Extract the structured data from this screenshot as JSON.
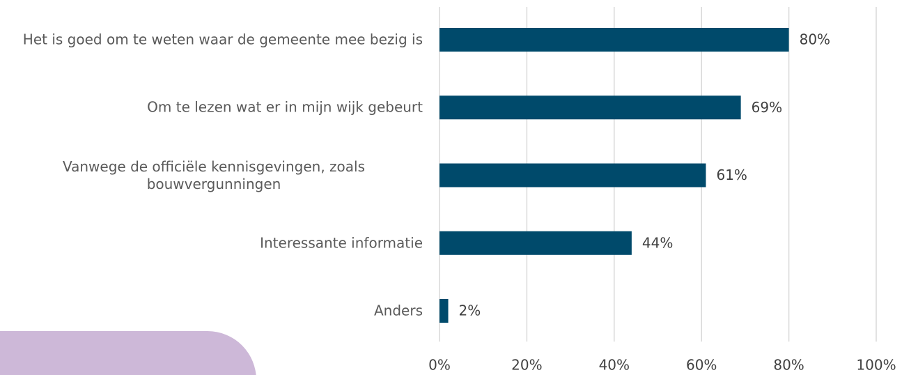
{
  "chart_data": {
    "type": "bar",
    "orientation": "horizontal",
    "categories": [
      "Het is goed om te weten waar de gemeente mee bezig is",
      "Om te lezen wat er in mijn wijk gebeurt",
      "Vanwege de officiële kennisgevingen, zoals bouwvergunningen",
      "Interessante informatie",
      "Anders"
    ],
    "values": [
      80,
      69,
      61,
      44,
      2
    ],
    "value_labels": [
      "80%",
      "69%",
      "61%",
      "44%",
      "2%"
    ],
    "color": "#004a6b",
    "xlim": [
      0,
      100
    ],
    "xticks": [
      {
        "value": 0,
        "label": "0%"
      },
      {
        "value": 20,
        "label": "20%"
      },
      {
        "value": 40,
        "label": "40%"
      },
      {
        "value": 60,
        "label": "60%"
      },
      {
        "value": 80,
        "label": "80%"
      },
      {
        "value": 100,
        "label": "100%"
      }
    ],
    "grid": true
  }
}
